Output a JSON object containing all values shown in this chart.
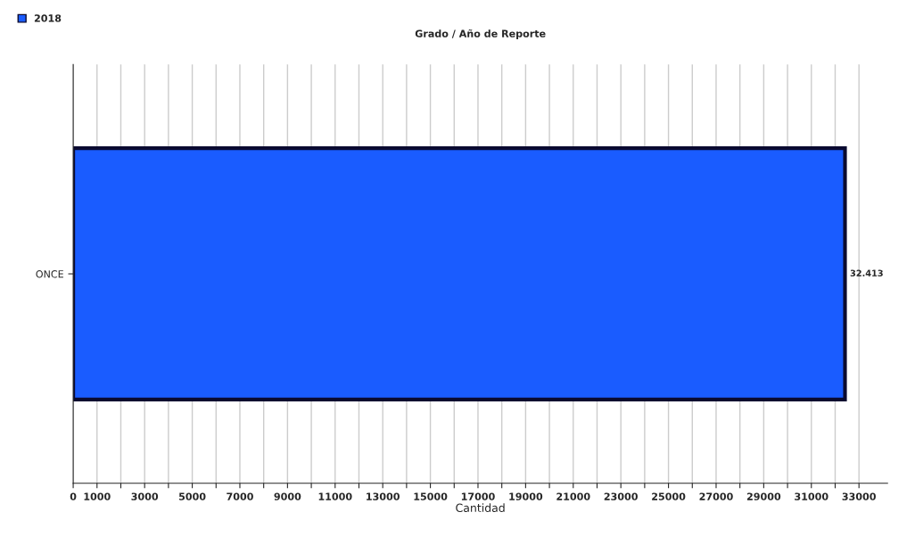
{
  "chart_data": {
    "type": "bar",
    "orientation": "horizontal",
    "title": "Grado / Año de Reporte",
    "xlabel": "Cantidad",
    "categories": [
      "ONCE"
    ],
    "series": [
      {
        "name": "2018",
        "color": "#1a5cff",
        "values": [
          32413
        ],
        "value_labels": [
          "32.413"
        ]
      }
    ],
    "xlim": [
      0,
      34200
    ],
    "xticks": [
      0,
      1000,
      {
        "value": 2000,
        "label": null
      },
      3000,
      {
        "value": 4000,
        "label": null
      },
      5000,
      {
        "value": 6000,
        "label": null
      },
      7000,
      {
        "value": 8000,
        "label": null
      },
      9000,
      {
        "value": 10000,
        "label": null
      },
      11000,
      {
        "value": 12000,
        "label": null
      },
      13000,
      {
        "value": 14000,
        "label": null
      },
      15000,
      {
        "value": 16000,
        "label": null
      },
      17000,
      {
        "value": 18000,
        "label": null
      },
      19000,
      {
        "value": 20000,
        "label": null
      },
      21000,
      {
        "value": 22000,
        "label": null
      },
      23000,
      {
        "value": 24000,
        "label": null
      },
      25000,
      {
        "value": 26000,
        "label": null
      },
      27000,
      {
        "value": 28000,
        "label": null
      },
      29000,
      {
        "value": 30000,
        "label": null
      },
      31000,
      {
        "value": 32000,
        "label": null
      },
      33000
    ],
    "grid": "x",
    "legend": "top left"
  }
}
